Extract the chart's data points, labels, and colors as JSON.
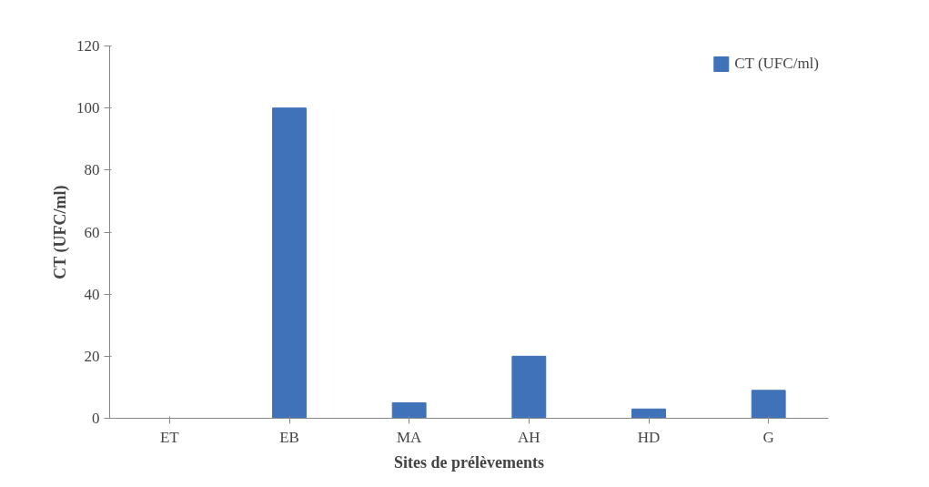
{
  "chart_data": {
    "type": "bar",
    "xlabel": "Sites de prélèvements",
    "ylabel": "CT (UFC/ml)",
    "categories": [
      "ET",
      "EB",
      "MA",
      "AH",
      "HD",
      "G"
    ],
    "series": [
      {
        "name": "CT (UFC/ml)",
        "color": "#3f72b8",
        "values": [
          0,
          100,
          5,
          20,
          3,
          9
        ]
      }
    ],
    "ylim": [
      0,
      120
    ],
    "yticks": [
      0,
      20,
      40,
      60,
      80,
      100,
      120
    ],
    "grid": false,
    "legend": "top right"
  }
}
